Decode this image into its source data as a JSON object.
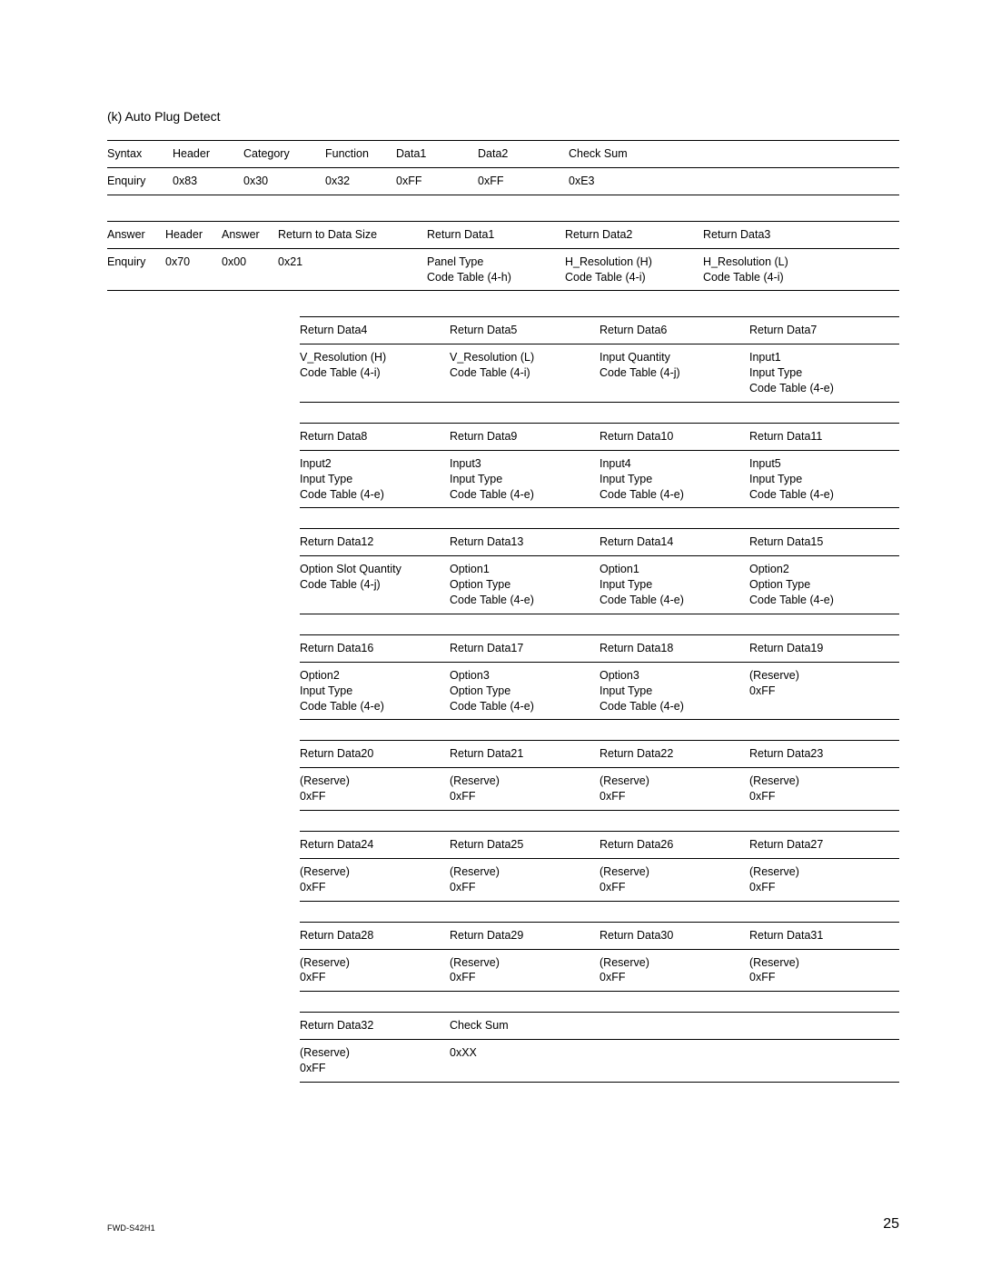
{
  "section_title": "(k)  Auto Plug Detect",
  "table1": {
    "headers": [
      "Syntax",
      "Header",
      "Category",
      "Function",
      "Data1",
      "Data2",
      "Check Sum"
    ],
    "row": [
      "Enquiry",
      "0x83",
      "0x30",
      "0x32",
      "0xFF",
      "0xFF",
      "0xE3"
    ]
  },
  "table2": {
    "headers": [
      "Answer",
      "Header",
      "Answer",
      "Return to Data Size",
      "Return Data1",
      "Return Data2",
      "Return Data3"
    ],
    "row": [
      "Enquiry",
      "0x70",
      "0x00",
      "0x21",
      "Panel Type\nCode Table (4-h)",
      "H_Resolution (H)\nCode Table (4-i)",
      "H_Resolution (L)\nCode Table (4-i)"
    ]
  },
  "blocks": [
    {
      "headers": [
        "Return Data4",
        "Return Data5",
        "Return Data6",
        "Return Data7"
      ],
      "cells": [
        "V_Resolution (H)\nCode Table (4-i)",
        "V_Resolution (L)\nCode Table (4-i)",
        "Input Quantity\nCode Table (4-j)",
        "Input1\nInput Type\nCode Table (4-e)"
      ]
    },
    {
      "headers": [
        "Return Data8",
        "Return Data9",
        "Return Data10",
        "Return Data11"
      ],
      "cells": [
        "Input2\nInput Type\nCode Table (4-e)",
        "Input3\nInput Type\nCode Table (4-e)",
        "Input4\nInput Type\nCode Table (4-e)",
        "Input5\nInput Type\nCode Table (4-e)"
      ]
    },
    {
      "headers": [
        "Return Data12",
        "Return Data13",
        "Return Data14",
        "Return Data15"
      ],
      "cells": [
        "Option Slot Quantity\nCode Table (4-j)",
        "Option1\nOption Type\nCode Table (4-e)",
        "Option1\nInput Type\nCode Table (4-e)",
        "Option2\nOption Type\nCode Table (4-e)"
      ]
    },
    {
      "headers": [
        "Return Data16",
        "Return Data17",
        "Return Data18",
        "Return Data19"
      ],
      "cells": [
        "Option2\nInput Type\nCode Table (4-e)",
        "Option3\nOption Type\nCode Table (4-e)",
        "Option3\nInput Type\nCode Table (4-e)",
        "(Reserve)\n0xFF"
      ]
    },
    {
      "headers": [
        "Return Data20",
        "Return Data21",
        "Return Data22",
        "Return Data23"
      ],
      "cells": [
        "(Reserve)\n0xFF",
        "(Reserve)\n0xFF",
        "(Reserve)\n0xFF",
        "(Reserve)\n0xFF"
      ]
    },
    {
      "headers": [
        "Return Data24",
        "Return Data25",
        "Return Data26",
        "Return Data27"
      ],
      "cells": [
        "(Reserve)\n0xFF",
        "(Reserve)\n0xFF",
        "(Reserve)\n0xFF",
        "(Reserve)\n0xFF"
      ]
    },
    {
      "headers": [
        "Return Data28",
        "Return Data29",
        "Return Data30",
        "Return Data31"
      ],
      "cells": [
        "(Reserve)\n0xFF",
        "(Reserve)\n0xFF",
        "(Reserve)\n0xFF",
        "(Reserve)\n0xFF"
      ]
    }
  ],
  "last_block": {
    "headers": [
      "Return Data32",
      "Check Sum"
    ],
    "cells": [
      "(Reserve)\n0xFF",
      "0xXX"
    ]
  },
  "footer": {
    "doc_id": "FWD-S42H1",
    "page": "25"
  }
}
